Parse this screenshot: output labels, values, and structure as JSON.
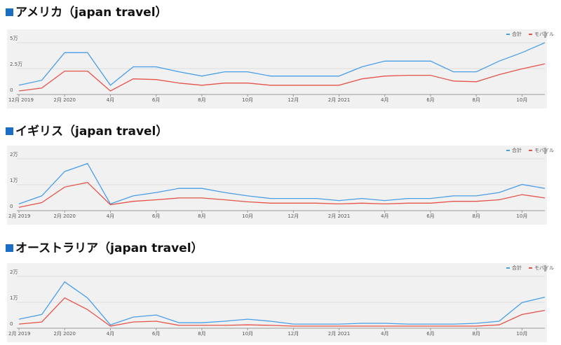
{
  "chart_data": [
    {
      "type": "line",
      "title": "アメリカ（japan travel）",
      "categories": [
        "12月 2019",
        null,
        "2月 2020",
        null,
        "4月",
        null,
        "6月",
        null,
        "8月",
        null,
        "10月",
        null,
        "12月",
        null,
        "2月 2021",
        null,
        "4月",
        null,
        "6月",
        null,
        "8月",
        null,
        "10月",
        null
      ],
      "series": [
        {
          "name": "合計",
          "color": "#4a9ee8",
          "values": [
            8900,
            13700,
            40400,
            40400,
            8900,
            26700,
            26700,
            21900,
            17800,
            21900,
            21900,
            17800,
            17800,
            17800,
            17800,
            26700,
            32200,
            32200,
            32200,
            21900,
            21900,
            32200,
            40400,
            50000
          ]
        },
        {
          "name": "モバイル",
          "color": "#e5534b",
          "values": [
            3400,
            6200,
            22600,
            22600,
            3400,
            15100,
            14400,
            11000,
            8900,
            11000,
            11000,
            8900,
            8900,
            8900,
            8900,
            15100,
            17800,
            18500,
            18500,
            13000,
            12300,
            19200,
            24700,
            29500
          ]
        }
      ],
      "ylim": [
        0,
        50000
      ],
      "yticks": [
        0,
        {
          "value": 25000,
          "label": "2.5万"
        },
        {
          "value": 50000,
          "label": "5万"
        }
      ],
      "grid": true
    },
    {
      "type": "line",
      "title": "イギリス（japan travel）",
      "categories": [
        "2月 2019",
        null,
        "2月 2020",
        null,
        "4月",
        null,
        "6月",
        null,
        "8月",
        null,
        "10月",
        null,
        "12月",
        null,
        "2月 2021",
        null,
        "4月",
        null,
        "6月",
        null,
        "8月",
        null,
        "10月",
        null
      ],
      "series": [
        {
          "name": "合計",
          "color": "#4a9ee8",
          "values": [
            2600,
            5700,
            15100,
            18200,
            2600,
            5700,
            7000,
            8600,
            8600,
            7000,
            5700,
            4700,
            4700,
            4700,
            3900,
            4700,
            3900,
            4700,
            4700,
            5700,
            5700,
            7000,
            10100,
            8600
          ]
        },
        {
          "name": "モバイル",
          "color": "#e5534b",
          "values": [
            1300,
            3100,
            9100,
            10900,
            2300,
            3600,
            4200,
            4900,
            4900,
            4200,
            3400,
            2900,
            2900,
            2900,
            2600,
            2900,
            2600,
            2900,
            2900,
            3600,
            3600,
            4200,
            6200,
            4900
          ]
        }
      ],
      "ylim": [
        0,
        20000
      ],
      "yticks": [
        0,
        {
          "value": 10000,
          "label": "1万"
        },
        {
          "value": 20000,
          "label": "2万"
        }
      ],
      "grid": true
    },
    {
      "type": "line",
      "title": "オーストラリア（japan travel）",
      "categories": [
        "2月 2019",
        null,
        "2月 2020",
        null,
        "4月",
        null,
        "6月",
        null,
        "8月",
        null,
        "10月",
        null,
        "12月",
        null,
        "2月 2021",
        null,
        "4月",
        null,
        "6月",
        null,
        "8月",
        null,
        "10月",
        null
      ],
      "series": [
        {
          "name": "合計",
          "color": "#4a9ee8",
          "values": [
            3500,
            5300,
            17900,
            11700,
            1300,
            4300,
            5100,
            2100,
            2100,
            2700,
            3500,
            2700,
            1600,
            1600,
            1600,
            1900,
            1900,
            1600,
            1600,
            1600,
            1900,
            2700,
            9900,
            12000
          ]
        },
        {
          "name": "モバイル",
          "color": "#e5534b",
          "values": [
            1600,
            2400,
            11700,
            7200,
            800,
            2400,
            2700,
            1100,
            1100,
            1100,
            1300,
            1100,
            800,
            800,
            800,
            800,
            800,
            800,
            800,
            800,
            800,
            1300,
            5300,
            6900
          ]
        }
      ],
      "ylim": [
        0,
        20000
      ],
      "yticks": [
        0,
        {
          "value": 10000,
          "label": "1万"
        },
        {
          "value": 20000,
          "label": "2万"
        }
      ],
      "grid": true
    }
  ]
}
